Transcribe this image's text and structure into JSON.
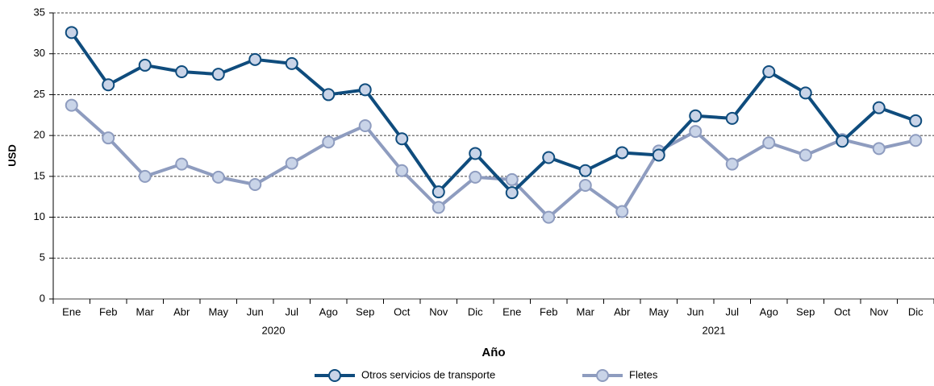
{
  "chart_data": {
    "type": "line",
    "y_label": "USD",
    "x_label": "Año",
    "categories": [
      "Ene",
      "Feb",
      "Mar",
      "Abr",
      "May",
      "Jun",
      "Jul",
      "Ago",
      "Sep",
      "Oct",
      "Nov",
      "Dic",
      "Ene",
      "Feb",
      "Mar",
      "Abr",
      "May",
      "Jun",
      "Jul",
      "Ago",
      "Sep",
      "Oct",
      "Nov",
      "Dic"
    ],
    "groups": [
      "2020",
      "2021"
    ],
    "series": [
      {
        "name": "Otros servicios de transporte",
        "color": "#0f4c7d",
        "marker_fill": "#c9d4e8",
        "values": [
          32.6,
          26.2,
          28.6,
          27.8,
          27.5,
          29.3,
          28.8,
          25.0,
          25.6,
          19.6,
          13.1,
          17.8,
          13.0,
          17.3,
          15.7,
          17.9,
          17.6,
          22.4,
          22.1,
          27.8,
          25.2,
          19.3,
          23.4,
          21.8
        ]
      },
      {
        "name": "Fletes",
        "color": "#8e9cbf",
        "marker_fill": "#c9d4e8",
        "values": [
          23.7,
          19.7,
          15.0,
          16.5,
          14.9,
          14.0,
          16.6,
          19.2,
          21.2,
          15.7,
          11.2,
          14.9,
          14.6,
          10.0,
          13.9,
          10.7,
          18.1,
          20.5,
          16.5,
          19.1,
          17.6,
          19.5,
          18.4,
          19.4
        ]
      }
    ],
    "ylim": [
      0,
      35
    ],
    "yticks": [
      0,
      5,
      10,
      15,
      20,
      25,
      30,
      35
    ],
    "grid": true
  }
}
